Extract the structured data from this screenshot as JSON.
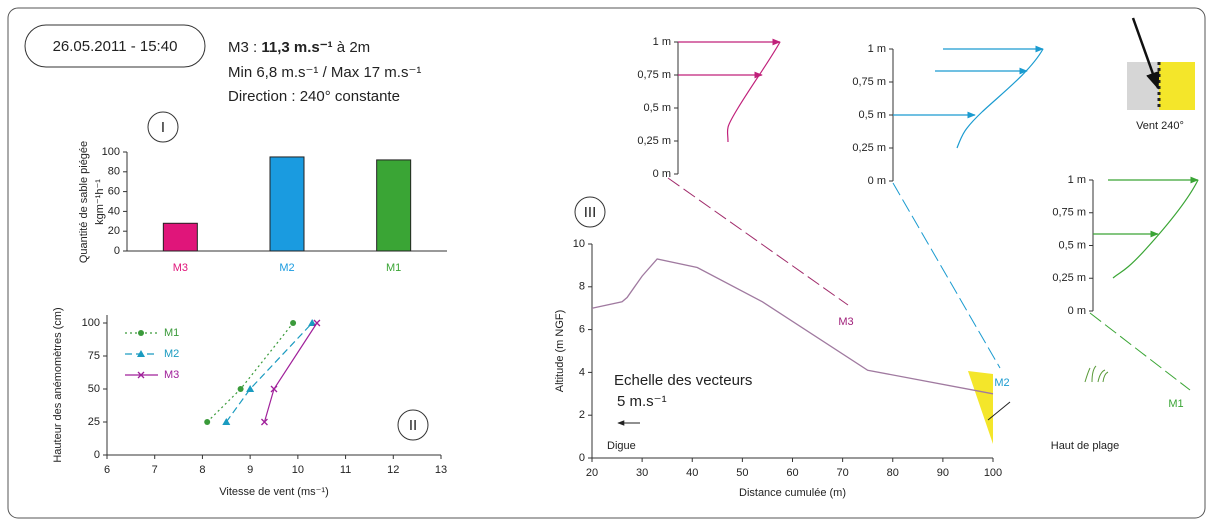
{
  "header": {
    "datetime": "26.05.2011 - 15:40",
    "line1_a": "M3 : ",
    "line1_b": "11,3 m.s⁻¹",
    "line1_c": " à 2m",
    "line2": "Min 6,8 m.s⁻¹ / Max 17 m.s⁻¹",
    "line3": "Direction : 240° constante",
    "wind_label": "Vent 240°"
  },
  "chart_data": [
    {
      "type": "bar",
      "label": "I",
      "ylabel": "Quantité de sable piégée",
      "ylabel_unit": "kgm⁻¹h⁻¹",
      "categories": [
        "M3",
        "M2",
        "M1"
      ],
      "values": [
        28,
        95,
        92
      ],
      "colors": [
        "#e0157a",
        "#1a9be0",
        "#3aa535"
      ],
      "ylim": [
        0,
        100
      ],
      "yticks": [
        0,
        20,
        40,
        60,
        80,
        100
      ]
    },
    {
      "type": "line",
      "label": "II",
      "xlabel": "Vitesse de vent (ms⁻¹)",
      "ylabel": "Hauteur des anémomètres (cm)",
      "xlim": [
        6,
        13
      ],
      "xticks": [
        6,
        7,
        8,
        9,
        10,
        11,
        12,
        13
      ],
      "ylim": [
        0,
        100
      ],
      "yticks": [
        0,
        25,
        50,
        75,
        100
      ],
      "legend": "top-left",
      "series": [
        {
          "name": "M1",
          "color": "#3a9a3a",
          "marker": "circle",
          "dash": "2,3",
          "x": [
            8.1,
            8.8,
            9.9
          ],
          "values": [
            25,
            50,
            100
          ]
        },
        {
          "name": "M2",
          "color": "#1a9bc0",
          "marker": "triangle",
          "dash": "7,4",
          "x": [
            8.5,
            9.0,
            10.3
          ],
          "values": [
            25,
            50,
            100
          ]
        },
        {
          "name": "M3",
          "color": "#a0209a",
          "marker": "cross",
          "dash": "",
          "x": [
            9.3,
            9.5,
            10.4
          ],
          "values": [
            25,
            50,
            100
          ]
        }
      ]
    },
    {
      "type": "profile",
      "label": "III",
      "xlabel": "Distance cumulée (m)",
      "ylabel": "Altitude (m NGF)",
      "xlim": [
        20,
        100
      ],
      "xticks": [
        20,
        30,
        40,
        50,
        60,
        70,
        80,
        90,
        100
      ],
      "ylim": [
        0,
        10
      ],
      "yticks": [
        0,
        2,
        4,
        6,
        8,
        10
      ],
      "color": "#a07aa0",
      "x": [
        20,
        26,
        27,
        30,
        33,
        41,
        54,
        75,
        100
      ],
      "values": [
        7,
        7.3,
        7.5,
        8.5,
        9.3,
        8.9,
        7.3,
        4.1,
        3
      ],
      "annotations": {
        "m3": "M3",
        "m2": "M2",
        "m1": "M1",
        "digue": "Digue",
        "haut_de_plage": "Haut de plage",
        "scale": "Echelle des vecteurs",
        "scale_value": "5 m.s⁻¹"
      }
    },
    {
      "type": "inset",
      "name": "M3",
      "color": "#c0207a",
      "ylim": [
        0,
        1
      ],
      "yticks": [
        {
          "value": 0,
          "label": "0 m"
        },
        {
          "value": 0.25,
          "label": "0,25 m"
        },
        {
          "value": 0.5,
          "label": "0,5 m"
        },
        {
          "value": 0.75,
          "label": "0,75 m"
        },
        {
          "value": 1,
          "label": "1 m"
        }
      ]
    },
    {
      "type": "inset",
      "name": "M2",
      "color": "#1a9bd0",
      "ylim": [
        0,
        1
      ],
      "yticks": [
        {
          "value": 0,
          "label": "0 m"
        },
        {
          "value": 0.25,
          "label": "0,25 m"
        },
        {
          "value": 0.5,
          "label": "0,5 m"
        },
        {
          "value": 0.75,
          "label": "0,75 m"
        },
        {
          "value": 1,
          "label": "1 m"
        }
      ]
    },
    {
      "type": "inset",
      "name": "M1",
      "color": "#3aa535",
      "ylim": [
        0,
        1
      ],
      "yticks": [
        {
          "value": 0,
          "label": "0 m"
        },
        {
          "value": 0.25,
          "label": "0,25 m"
        },
        {
          "value": 0.5,
          "label": "0,5 m"
        },
        {
          "value": 0.75,
          "label": "0,75 m"
        },
        {
          "value": 1,
          "label": "1 m"
        }
      ]
    }
  ]
}
